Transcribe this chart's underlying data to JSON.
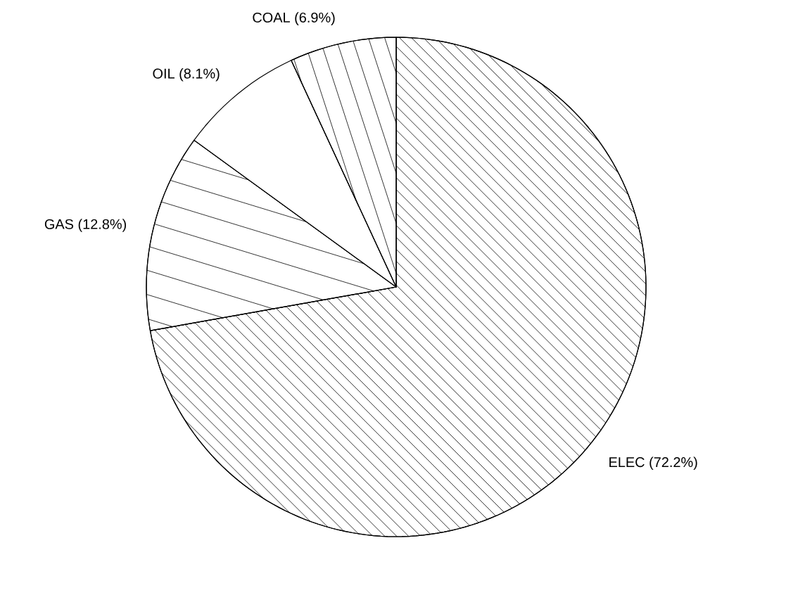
{
  "chart_data": {
    "type": "pie",
    "categories": [
      "ELEC (72.2%)",
      "GAS (12.8%)",
      "OIL (8.1%)",
      "COAL (6.9%)"
    ],
    "values": [
      72.2,
      12.8,
      8.1,
      6.9
    ],
    "colors": [
      "#000000",
      "#000000",
      "#000000",
      "#000000"
    ]
  }
}
